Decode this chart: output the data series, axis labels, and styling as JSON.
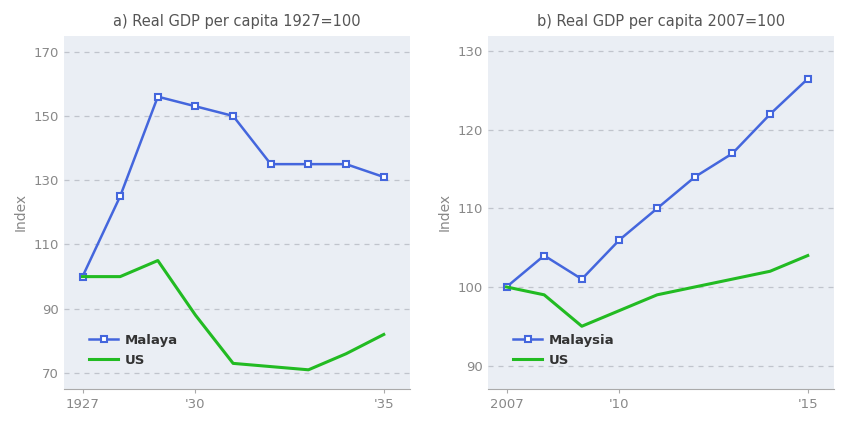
{
  "left_title": "a) Real GDP per capita 1927=100",
  "right_title": "b) Real GDP per capita 2007=100",
  "ylabel": "Index",
  "fig_bg": "#ffffff",
  "plot_bg": "#eaeef4",
  "blue_color": "#4466dd",
  "green_color": "#22bb22",
  "grid_color": "#c0c4cc",
  "tick_color": "#888888",
  "left_malaya_x": [
    1927,
    1928,
    1929,
    1930,
    1931,
    1932,
    1933,
    1934,
    1935
  ],
  "left_malaya_y": [
    100,
    125,
    156,
    153,
    150,
    135,
    135,
    135,
    131
  ],
  "left_us_x": [
    1927,
    1928,
    1929,
    1930,
    1931,
    1932,
    1933,
    1934,
    1935
  ],
  "left_us_y": [
    100,
    100,
    105,
    88,
    73,
    72,
    71,
    76,
    82
  ],
  "left_xlim": [
    1926.5,
    1935.7
  ],
  "left_ylim": [
    65,
    175
  ],
  "left_yticks": [
    70,
    90,
    110,
    130,
    150,
    170
  ],
  "left_xtick_pos": [
    1927,
    1930,
    1935
  ],
  "left_xtick_labels": [
    "1927",
    "'30",
    "'35"
  ],
  "right_malaysia_x": [
    2007,
    2008,
    2009,
    2010,
    2011,
    2012,
    2013,
    2014,
    2015
  ],
  "right_malaysia_y": [
    100,
    104,
    101,
    106,
    110,
    114,
    117,
    122,
    126.5
  ],
  "right_us_x": [
    2007,
    2008,
    2009,
    2010,
    2011,
    2012,
    2013,
    2014,
    2015
  ],
  "right_us_y": [
    100,
    99,
    95,
    97,
    99,
    100,
    101,
    102,
    104
  ],
  "right_xlim": [
    2006.5,
    2015.7
  ],
  "right_ylim": [
    87,
    132
  ],
  "right_yticks": [
    90,
    100,
    110,
    120,
    130
  ],
  "right_xtick_pos": [
    2007,
    2010,
    2015
  ],
  "right_xtick_labels": [
    "2007",
    "'10",
    "'15"
  ]
}
